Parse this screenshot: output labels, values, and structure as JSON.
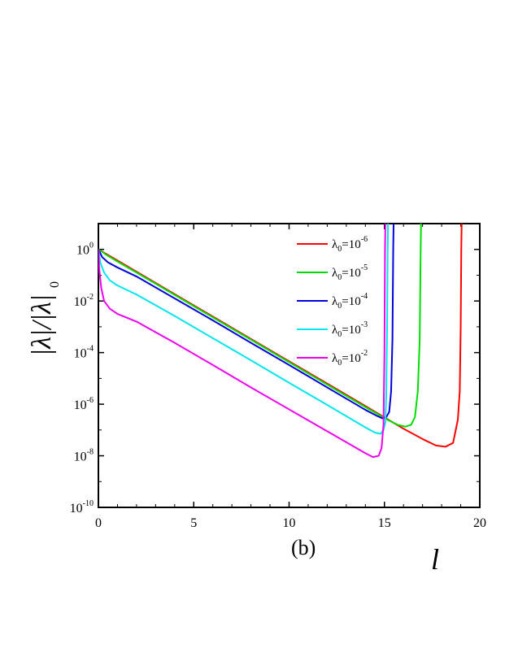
{
  "chart_data": {
    "type": "line",
    "title": "",
    "caption": "(b)",
    "xlabel": "l",
    "ylabel": "|λ|/|λ₀|",
    "xlim": [
      0,
      20
    ],
    "ylim_log10": [
      -10,
      1
    ],
    "y_scale": "log",
    "grid": false,
    "legend_position": "top-right",
    "x_ticks": [
      {
        "value": 0,
        "label": "0"
      },
      {
        "value": 5,
        "label": "5"
      },
      {
        "value": 10,
        "label": "10"
      },
      {
        "value": 15,
        "label": "15"
      },
      {
        "value": 20,
        "label": "20"
      }
    ],
    "y_ticks": [
      {
        "exp": 0,
        "base": "10",
        "sup": "0"
      },
      {
        "exp": -2,
        "base": "10",
        "sup": "-2"
      },
      {
        "exp": -4,
        "base": "10",
        "sup": "-4"
      },
      {
        "exp": -6,
        "base": "10",
        "sup": "-6"
      },
      {
        "exp": -8,
        "base": "10",
        "sup": "-8"
      },
      {
        "exp": -10,
        "base": "10",
        "sup": "-10"
      }
    ],
    "series": [
      {
        "name": "λ0=10-6",
        "label_main": "λ",
        "label_sub": "0",
        "label_eq": "=10",
        "label_sup": "-6",
        "color": "#ff0000",
        "points": [
          [
            0,
            0
          ],
          [
            1,
            -0.43
          ],
          [
            3,
            -1.3
          ],
          [
            5,
            -2.17
          ],
          [
            8,
            -3.47
          ],
          [
            10,
            -4.34
          ],
          [
            12,
            -5.2
          ],
          [
            14,
            -6.07
          ],
          [
            15.2,
            -6.6
          ],
          [
            16,
            -6.95
          ],
          [
            17,
            -7.35
          ],
          [
            17.7,
            -7.6
          ],
          [
            18.2,
            -7.65
          ],
          [
            18.6,
            -7.5
          ],
          [
            18.85,
            -6.6
          ],
          [
            18.95,
            -5.5
          ],
          [
            19.0,
            -3.0
          ],
          [
            19.03,
            0
          ],
          [
            19.05,
            1
          ]
        ]
      },
      {
        "name": "λ0=10-5",
        "label_main": "λ",
        "label_sub": "0",
        "label_eq": "=10",
        "label_sup": "-5",
        "color": "#00dd00",
        "points": [
          [
            0,
            0
          ],
          [
            0.5,
            -0.25
          ],
          [
            1,
            -0.47
          ],
          [
            3,
            -1.33
          ],
          [
            5,
            -2.2
          ],
          [
            8,
            -3.5
          ],
          [
            10,
            -4.37
          ],
          [
            12,
            -5.24
          ],
          [
            14,
            -6.11
          ],
          [
            15.2,
            -6.62
          ],
          [
            15.7,
            -6.8
          ],
          [
            16.1,
            -6.87
          ],
          [
            16.4,
            -6.8
          ],
          [
            16.6,
            -6.5
          ],
          [
            16.75,
            -5.5
          ],
          [
            16.85,
            -3.5
          ],
          [
            16.9,
            0
          ],
          [
            16.92,
            1
          ]
        ]
      },
      {
        "name": "λ0=10-4",
        "label_main": "λ",
        "label_sub": "0",
        "label_eq": "=10",
        "label_sup": "-4",
        "color": "#0000dd",
        "points": [
          [
            0,
            0
          ],
          [
            0.2,
            -0.3
          ],
          [
            0.5,
            -0.5
          ],
          [
            1,
            -0.7
          ],
          [
            2,
            -1.05
          ],
          [
            4,
            -1.9
          ],
          [
            6,
            -2.75
          ],
          [
            8,
            -3.62
          ],
          [
            10,
            -4.48
          ],
          [
            12,
            -5.35
          ],
          [
            14,
            -6.22
          ],
          [
            14.6,
            -6.45
          ],
          [
            14.9,
            -6.55
          ],
          [
            15.1,
            -6.5
          ],
          [
            15.25,
            -6.3
          ],
          [
            15.35,
            -5.5
          ],
          [
            15.42,
            -3.5
          ],
          [
            15.46,
            0
          ],
          [
            15.48,
            1
          ]
        ]
      },
      {
        "name": "λ0=10-3",
        "label_main": "λ",
        "label_sub": "0",
        "label_eq": "=10",
        "label_sup": "-3",
        "color": "#00e5ee",
        "points": [
          [
            0,
            0
          ],
          [
            0.1,
            -0.5
          ],
          [
            0.3,
            -0.9
          ],
          [
            0.6,
            -1.2
          ],
          [
            1,
            -1.4
          ],
          [
            2,
            -1.75
          ],
          [
            4,
            -2.58
          ],
          [
            6,
            -3.44
          ],
          [
            8,
            -4.3
          ],
          [
            10,
            -5.17
          ],
          [
            12,
            -6.03
          ],
          [
            14,
            -6.9
          ],
          [
            14.5,
            -7.1
          ],
          [
            14.8,
            -7.15
          ],
          [
            14.95,
            -7.0
          ],
          [
            15.05,
            -6.7
          ],
          [
            15.1,
            -5.5
          ],
          [
            15.14,
            -3.0
          ],
          [
            15.17,
            0
          ],
          [
            15.19,
            1
          ]
        ]
      },
      {
        "name": "λ0=10-2",
        "label_main": "λ",
        "label_sub": "0",
        "label_eq": "=10",
        "label_sup": "-2",
        "color": "#ee00ee",
        "points": [
          [
            0,
            0
          ],
          [
            0.05,
            -0.8
          ],
          [
            0.15,
            -1.5
          ],
          [
            0.3,
            -2.0
          ],
          [
            0.6,
            -2.3
          ],
          [
            1,
            -2.5
          ],
          [
            2,
            -2.8
          ],
          [
            4,
            -3.62
          ],
          [
            6,
            -4.48
          ],
          [
            8,
            -5.35
          ],
          [
            10,
            -6.2
          ],
          [
            12,
            -7.05
          ],
          [
            14,
            -7.9
          ],
          [
            14.4,
            -8.05
          ],
          [
            14.7,
            -8.0
          ],
          [
            14.85,
            -7.7
          ],
          [
            14.95,
            -6.8
          ],
          [
            15.0,
            -4.0
          ],
          [
            15.03,
            0
          ],
          [
            15.05,
            1
          ]
        ]
      }
    ]
  }
}
